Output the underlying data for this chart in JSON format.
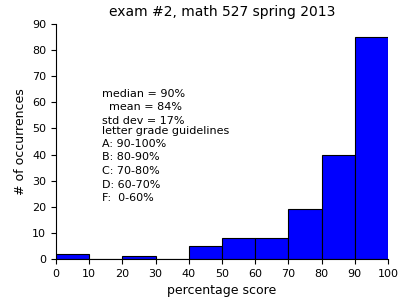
{
  "title": "exam #2, math 527 spring 2013",
  "xlabel": "percentage score",
  "ylabel": "# of occurrences",
  "bin_edges": [
    0,
    10,
    20,
    30,
    40,
    50,
    60,
    70,
    80,
    90,
    100
  ],
  "counts": [
    2,
    0,
    1,
    0,
    5,
    8,
    8,
    19,
    40,
    85
  ],
  "bar_color": "blue",
  "bar_edge_color": "black",
  "ylim": [
    0,
    90
  ],
  "xlim": [
    0,
    100
  ],
  "yticks": [
    0,
    10,
    20,
    30,
    40,
    50,
    60,
    70,
    80,
    90
  ],
  "xticks": [
    0,
    10,
    20,
    30,
    40,
    50,
    60,
    70,
    80,
    90,
    100
  ],
  "stats_text": "median = 90%\n  mean = 84%\nstd dev = 17%",
  "grade_title": "letter grade guidelines",
  "grade_lines": [
    "A: 90-100%",
    "B: 80-90%",
    "C: 70-80%",
    "D: 60-70%",
    "F:  0-60%"
  ],
  "title_fontsize": 10,
  "axis_label_fontsize": 9,
  "tick_fontsize": 8,
  "annotation_fontsize": 8,
  "figsize": [
    4.0,
    3.01
  ],
  "dpi": 100
}
